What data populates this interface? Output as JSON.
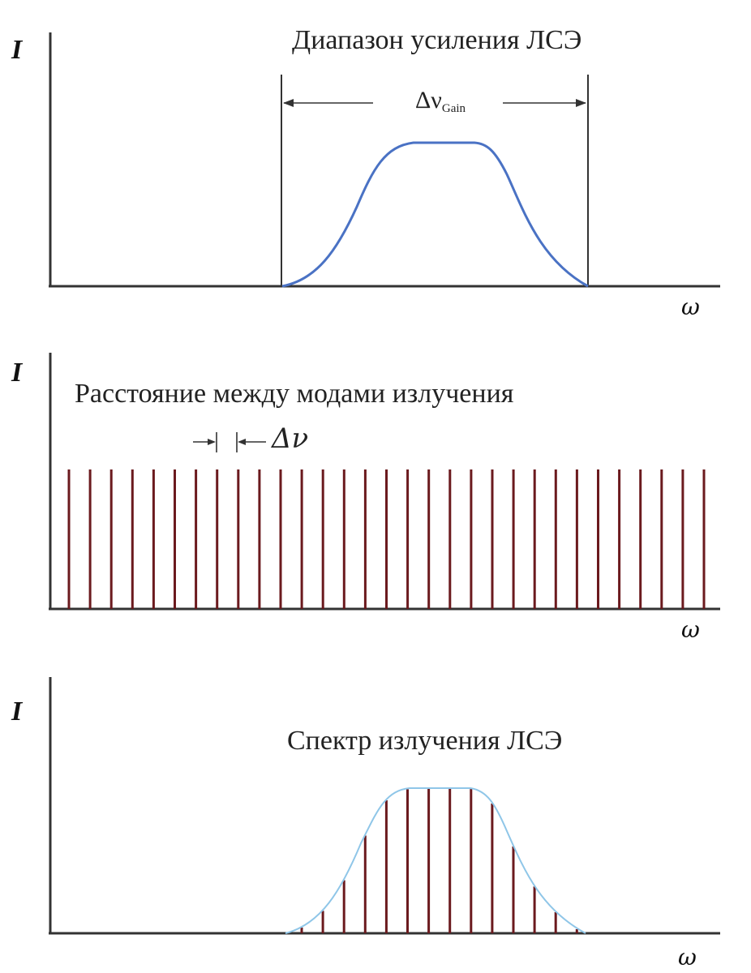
{
  "panel1": {
    "axis_y": "I",
    "axis_x": "ω",
    "title": "Диапазон усиления ЛСЭ",
    "bandwidth_label_main": "Δν",
    "bandwidth_label_sub": "Gain",
    "curve_color": "#4a72c4"
  },
  "panel2": {
    "axis_y": "I",
    "axis_x": "ω",
    "title": "Расстояние между модами излучения",
    "spacing_label": "Δν",
    "mode_color": "#6b1a1e",
    "mode_count": 31
  },
  "panel3": {
    "axis_y": "I",
    "axis_x": "ω",
    "title": "Спектр излучения ЛСЭ",
    "envelope_color": "#8fc6e8",
    "mode_color": "#6b1a1e"
  }
}
